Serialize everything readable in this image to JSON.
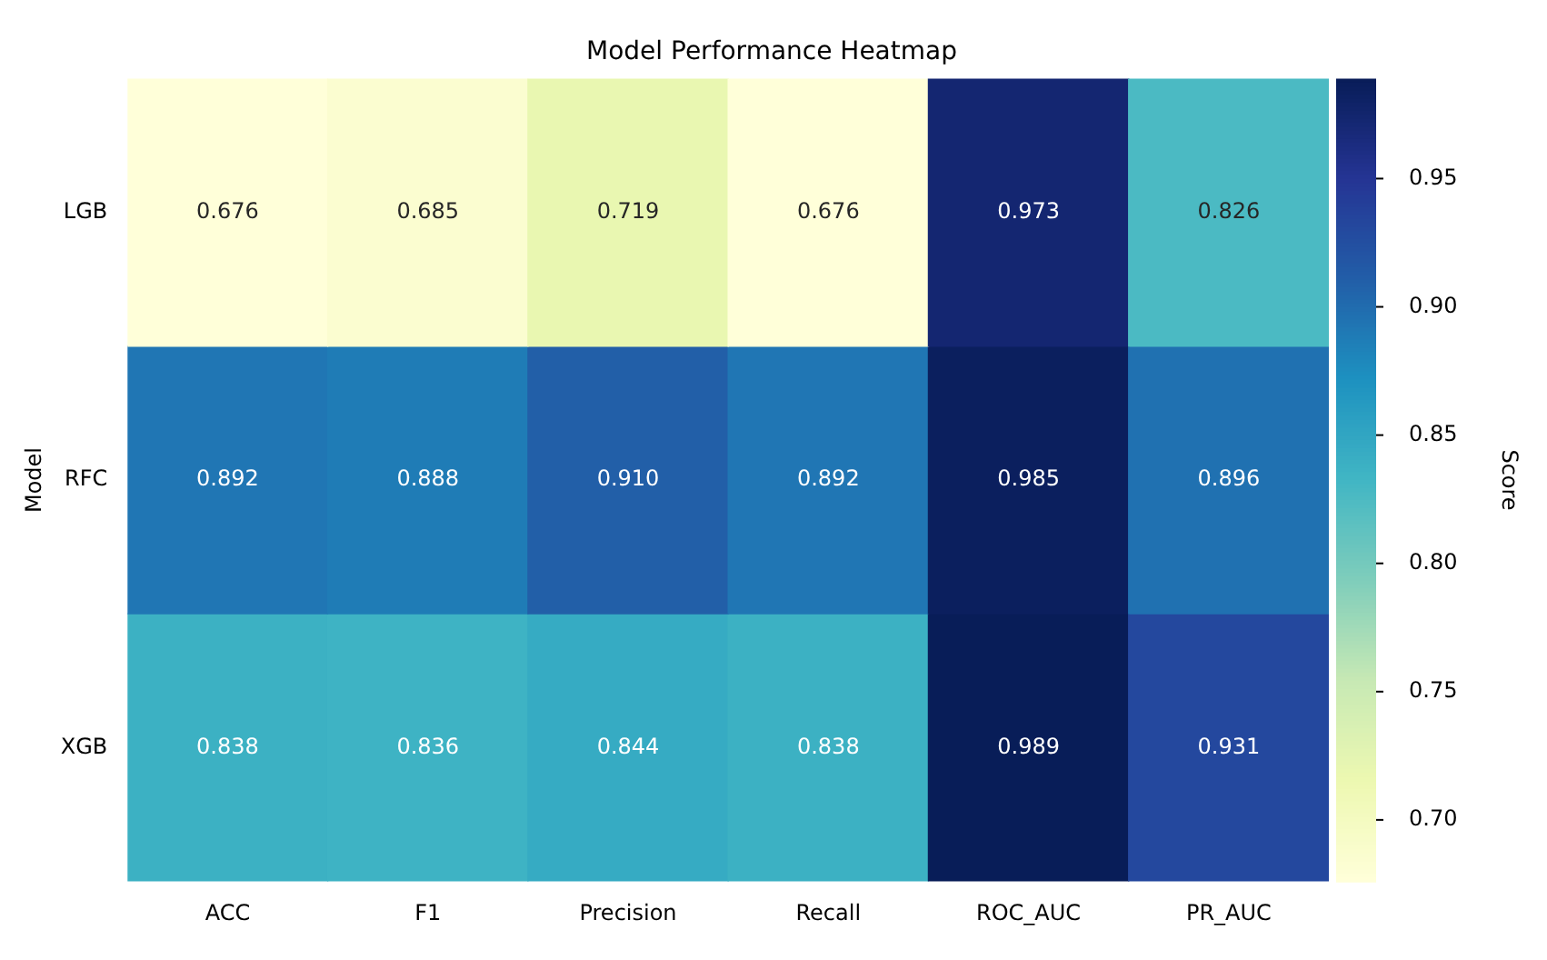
{
  "chart_data": {
    "type": "heatmap",
    "title": "Model Performance Heatmap",
    "ylabel": "Model",
    "clabel": "Score",
    "categories": [
      "ACC",
      "F1",
      "Precision",
      "Recall",
      "ROC_AUC",
      "PR_AUC"
    ],
    "y_categories": [
      "LGB",
      "RFC",
      "XGB"
    ],
    "cells": [
      [
        0.676,
        0.685,
        0.719,
        0.676,
        0.973,
        0.826
      ],
      [
        0.892,
        0.888,
        0.91,
        0.892,
        0.985,
        0.896
      ],
      [
        0.838,
        0.836,
        0.844,
        0.838,
        0.989,
        0.931
      ]
    ],
    "cell_labels": [
      [
        "0.676",
        "0.685",
        "0.719",
        "0.676",
        "0.973",
        "0.826"
      ],
      [
        "0.892",
        "0.888",
        "0.910",
        "0.892",
        "0.985",
        "0.896"
      ],
      [
        "0.838",
        "0.836",
        "0.844",
        "0.838",
        "0.989",
        "0.931"
      ]
    ],
    "clim": [
      0.676,
      0.989
    ],
    "cticks": [
      {
        "value": 0.7,
        "label": "0.70"
      },
      {
        "value": 0.75,
        "label": "0.75"
      },
      {
        "value": 0.8,
        "label": "0.80"
      },
      {
        "value": 0.85,
        "label": "0.85"
      },
      {
        "value": 0.9,
        "label": "0.90"
      },
      {
        "value": 0.95,
        "label": "0.95"
      }
    ],
    "data_labels": true
  }
}
